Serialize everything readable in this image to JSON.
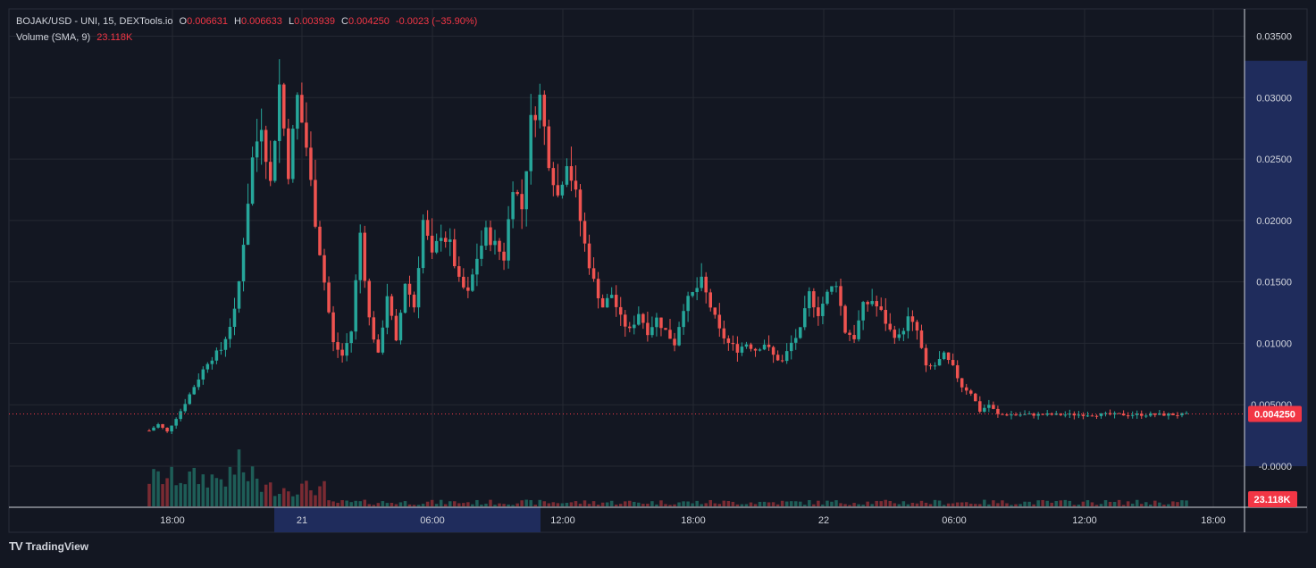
{
  "header": {
    "symbol": "BOJAK/USD - UNI, 15, DEXTools.io",
    "o_label": "O",
    "o_value": "0.006631",
    "h_label": "H",
    "h_value": "0.006633",
    "l_label": "L",
    "l_value": "0.003939",
    "c_label": "C",
    "c_value": "0.004250",
    "change": "-0.0023 (−35.90%)",
    "volume_label": "Volume (SMA, 9)",
    "volume_value": "23.118K"
  },
  "footer": {
    "brand": "TradingView",
    "logo": "TV"
  },
  "colors": {
    "background": "#131722",
    "grid": "#242833",
    "up": "#26a69a",
    "down": "#ef5350",
    "up_volume": "#1e5d57",
    "down_volume": "#7a2b33",
    "axis_highlight": "#1f2c5c",
    "price_badge": "#f23645"
  },
  "chart_data": {
    "type": "candlestick",
    "title": "BOJAK/USD - UNI, 15, DEXTools.io",
    "interval": "15",
    "x_ticks": [
      "18:00",
      "21",
      "06:00",
      "12:00",
      "18:00",
      "22",
      "06:00",
      "12:00",
      "18:00"
    ],
    "highlighted_x_range": [
      "21",
      "12:00"
    ],
    "y_ticks": [
      "0.03500",
      "0.03000",
      "0.02500",
      "0.02000",
      "0.01500",
      "0.01000",
      "0.005000",
      "-0.0000"
    ],
    "ylim": [
      0,
      0.035
    ],
    "highlighted_y_range": [
      0,
      0.033
    ],
    "last_price": "0.004250",
    "last_volume": "23.118K",
    "grid": true,
    "legend": "top-left",
    "price_anchors": {
      "x": [
        0,
        2,
        4,
        7,
        10,
        13,
        16,
        19,
        20,
        23,
        25,
        27,
        29,
        31,
        33,
        35,
        37,
        39,
        41,
        43,
        45,
        47,
        49,
        51,
        53,
        55,
        57,
        59,
        61,
        63,
        65,
        67,
        69,
        71,
        73,
        75,
        77,
        79,
        81,
        83,
        85,
        87,
        89,
        91,
        93,
        95,
        97,
        99,
        101,
        103,
        105,
        107,
        109,
        111,
        113,
        115,
        117,
        119,
        121,
        123,
        125,
        127,
        129,
        131,
        133,
        135,
        137,
        139,
        141,
        143,
        145,
        147,
        149,
        151,
        153,
        155,
        157,
        159,
        161,
        163,
        165,
        167,
        169,
        171,
        173,
        175,
        177,
        179,
        181,
        183,
        185,
        187,
        189,
        191,
        193,
        195,
        197,
        199,
        201,
        203,
        205,
        207,
        209,
        211,
        213,
        215,
        217,
        219,
        221,
        223,
        225,
        227,
        229,
        231
      ],
      "y": [
        0.0029,
        0.0034,
        0.0028,
        0.0045,
        0.0065,
        0.0085,
        0.0095,
        0.0125,
        0.015,
        0.025,
        0.028,
        0.023,
        0.031,
        0.024,
        0.03,
        0.026,
        0.02,
        0.015,
        0.01,
        0.009,
        0.011,
        0.019,
        0.012,
        0.009,
        0.014,
        0.01,
        0.015,
        0.013,
        0.02,
        0.017,
        0.019,
        0.018,
        0.015,
        0.014,
        0.017,
        0.019,
        0.018,
        0.017,
        0.023,
        0.021,
        0.028,
        0.03,
        0.025,
        0.022,
        0.025,
        0.022,
        0.018,
        0.015,
        0.013,
        0.014,
        0.012,
        0.011,
        0.0125,
        0.011,
        0.012,
        0.011,
        0.01,
        0.013,
        0.014,
        0.015,
        0.013,
        0.011,
        0.01,
        0.0095,
        0.01,
        0.0095,
        0.01,
        0.009,
        0.0085,
        0.01,
        0.011,
        0.014,
        0.0125,
        0.014,
        0.015,
        0.011,
        0.0105,
        0.013,
        0.0135,
        0.0125,
        0.011,
        0.0105,
        0.012,
        0.011,
        0.008,
        0.0082,
        0.009,
        0.008,
        0.0065,
        0.006,
        0.0045,
        0.005,
        0.0042,
        0.0042,
        0.0042,
        0.0042,
        0.0042,
        0.0042,
        0.0042,
        0.0042,
        0.0042,
        0.0042,
        0.0042,
        0.0042,
        0.0042,
        0.0042,
        0.0042,
        0.0042,
        0.0042,
        0.0042,
        0.0042,
        0.0042,
        0.0042,
        0.0042
      ]
    }
  }
}
